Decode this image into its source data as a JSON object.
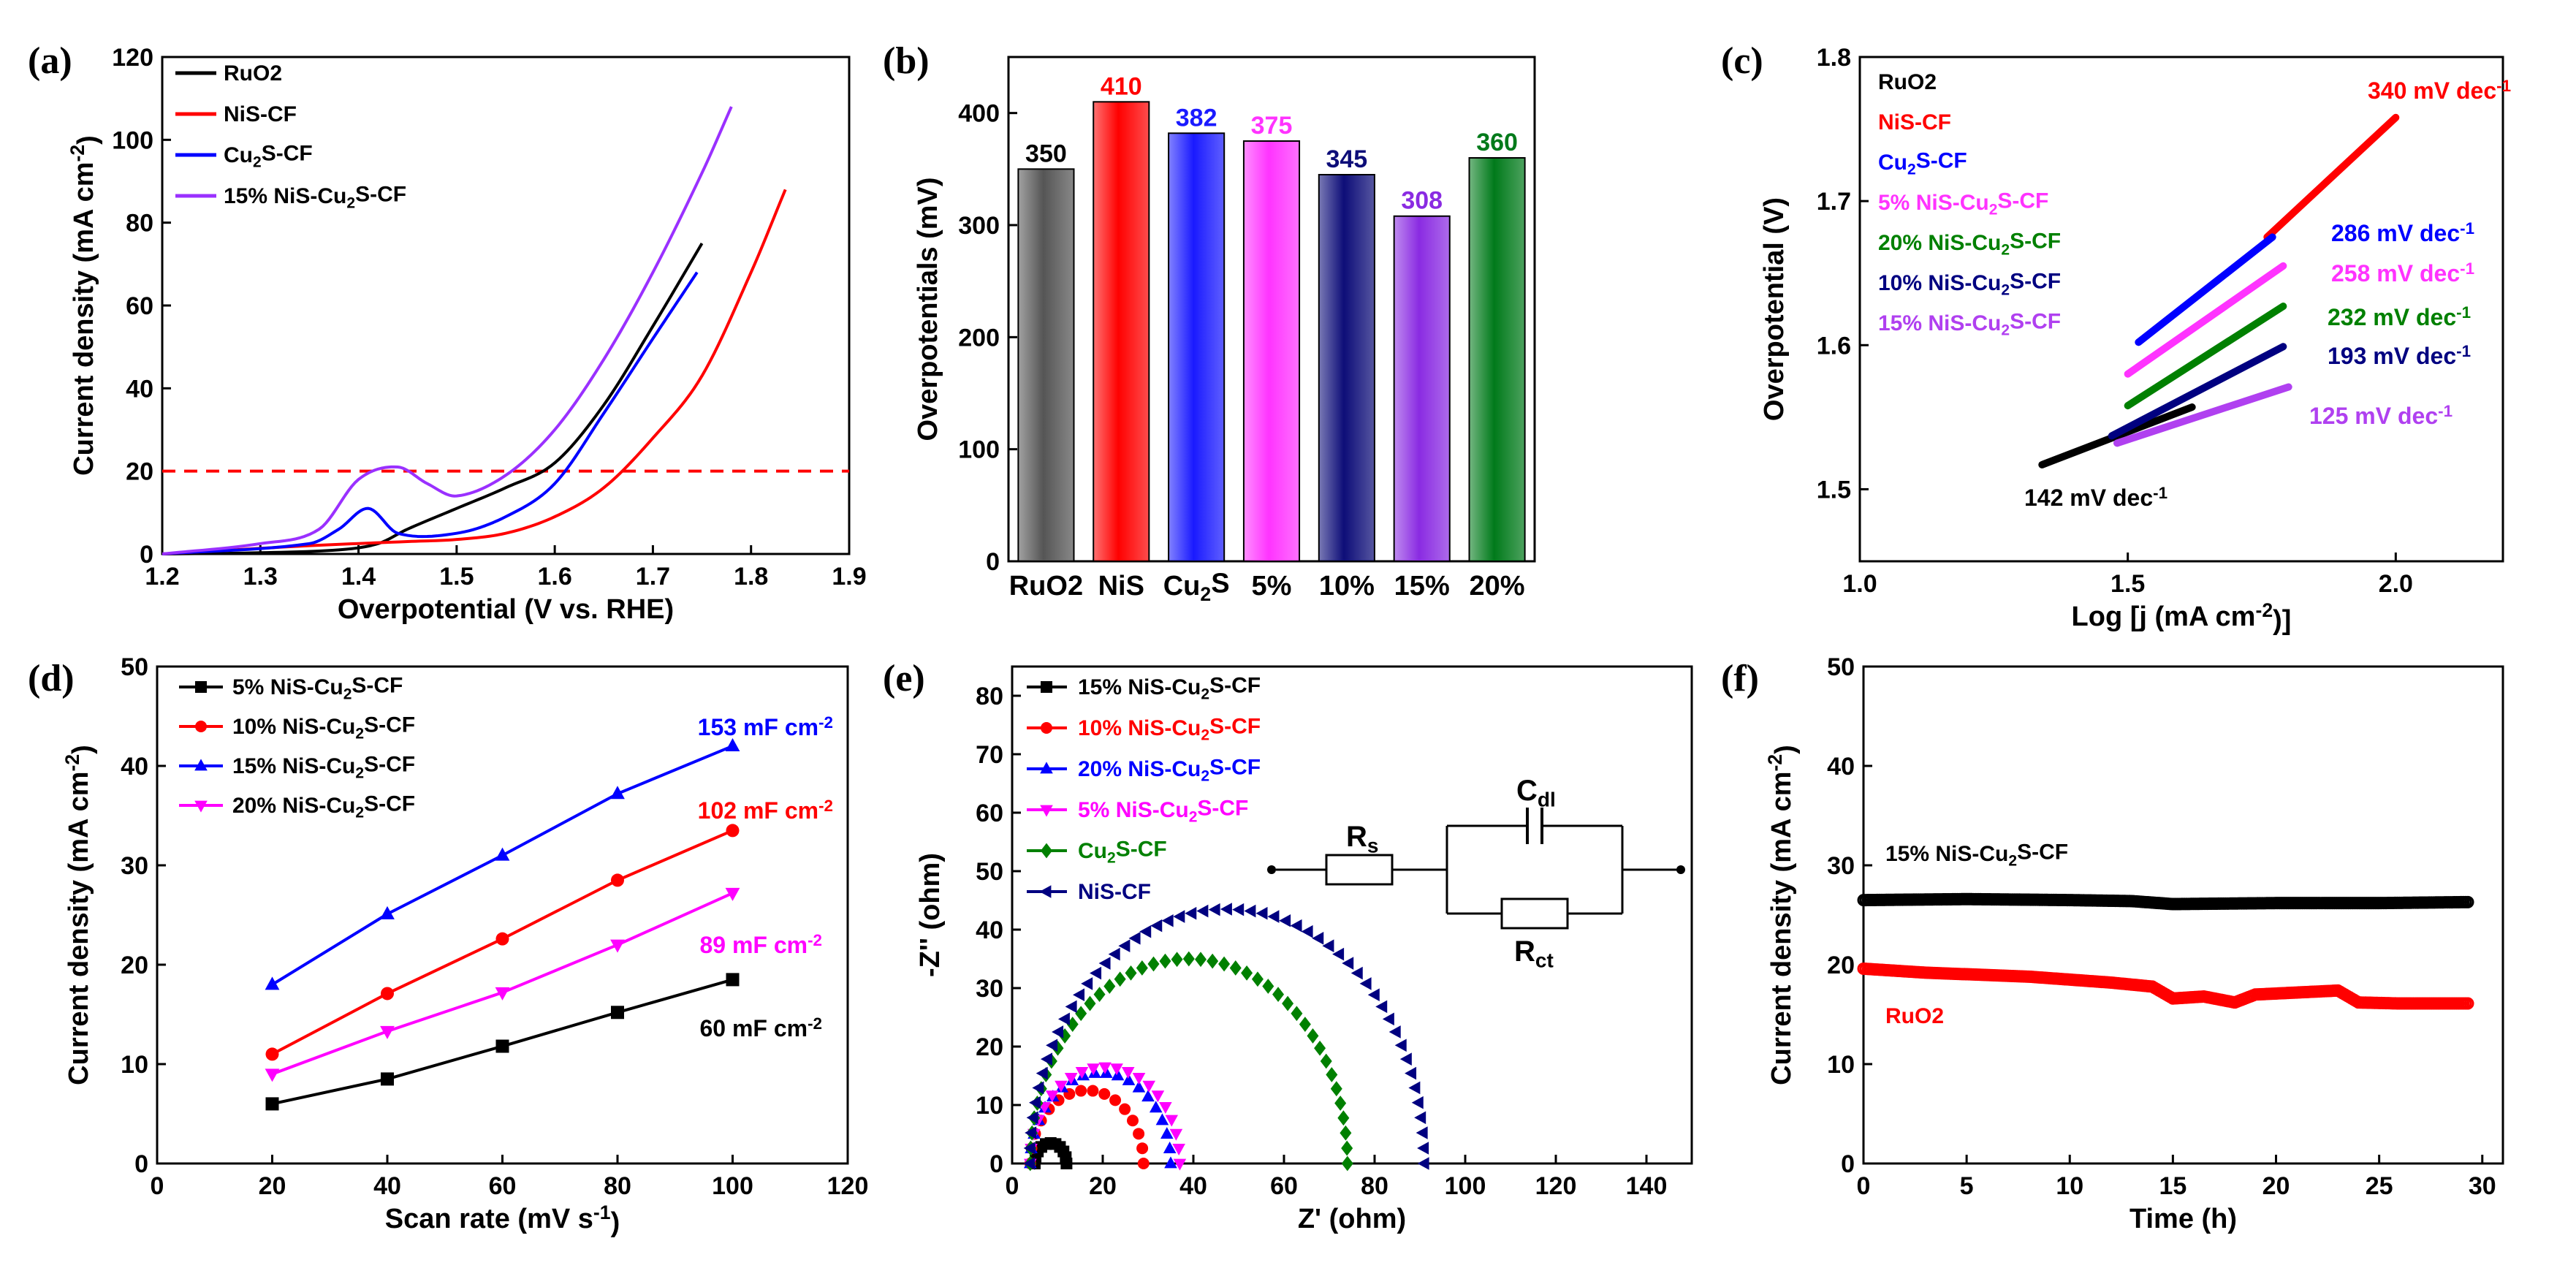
{
  "chart_data": [
    {
      "panel": "(a)",
      "type": "line",
      "xlabel": "Overpotential (V vs. RHE)",
      "ylabel": "Current density (mA cm-2)",
      "xlim": [
        1.2,
        1.9
      ],
      "ylim": [
        0,
        120
      ],
      "xticks": [
        "1.2",
        "1.3",
        "1.4",
        "1.5",
        "1.6",
        "1.7",
        "1.8",
        "1.9"
      ],
      "yticks": [
        "0",
        "20",
        "40",
        "60",
        "80",
        "100",
        "120"
      ],
      "hline": 20,
      "series": [
        {
          "name": "RuO2",
          "color": "#000000",
          "x": [
            1.2,
            1.3,
            1.38,
            1.42,
            1.45,
            1.5,
            1.55,
            1.6,
            1.65,
            1.7,
            1.75
          ],
          "y": [
            0,
            0.3,
            1,
            2.5,
            6,
            11,
            16,
            22,
            36,
            55,
            75
          ]
        },
        {
          "name": "NiS-CF",
          "color": "#ff0000",
          "x": [
            1.2,
            1.35,
            1.45,
            1.5,
            1.55,
            1.6,
            1.65,
            1.7,
            1.75,
            1.8,
            1.835
          ],
          "y": [
            0,
            2,
            3,
            3.5,
            5,
            9,
            16,
            28,
            43,
            68,
            88
          ]
        },
        {
          "name": "Cu2S-CF",
          "color": "#0000ff",
          "x": [
            1.2,
            1.35,
            1.38,
            1.41,
            1.44,
            1.5,
            1.55,
            1.6,
            1.65,
            1.7,
            1.745
          ],
          "y": [
            0,
            2.5,
            6,
            11,
            5,
            5,
            9,
            17,
            34,
            52,
            68
          ]
        },
        {
          "name": "15% NiS-Cu2S-CF",
          "color": "#9a30ff",
          "x": [
            1.2,
            1.3,
            1.36,
            1.4,
            1.44,
            1.47,
            1.5,
            1.55,
            1.6,
            1.65,
            1.7,
            1.75,
            1.78
          ],
          "y": [
            0,
            2.5,
            6,
            18,
            21,
            17,
            14,
            19,
            30,
            47,
            68,
            92,
            108
          ]
        }
      ]
    },
    {
      "panel": "(b)",
      "type": "bar",
      "ylabel": "Overpotentials (mV)",
      "ylim": [
        0,
        450
      ],
      "yticks": [
        "0",
        "100",
        "200",
        "300",
        "400"
      ],
      "categories": [
        "RuO2",
        "NiS",
        "Cu2S",
        "5%",
        "10%",
        "15%",
        "20%"
      ],
      "values": [
        350,
        410,
        382,
        375,
        345,
        308,
        360
      ],
      "value_labels": [
        "350",
        "410",
        "382",
        "375",
        "345",
        "308",
        "360"
      ],
      "colors": [
        "#555555",
        "#ff0000",
        "#1a1aff",
        "#ff33ff",
        "#0d0d78",
        "#8a2be2",
        "#007a1a"
      ]
    },
    {
      "panel": "(c)",
      "type": "line",
      "xlabel": "Log [j (mA cm-2)]",
      "ylabel": "Overpotential (V)",
      "xlim": [
        1.0,
        2.2
      ],
      "ylim": [
        1.45,
        1.8
      ],
      "xticks": [
        "1.0",
        "1.5",
        "2.0"
      ],
      "yticks": [
        "1.5",
        "1.6",
        "1.7",
        "1.8"
      ],
      "series": [
        {
          "name": "RuO2",
          "color": "#000000",
          "x": [
            1.34,
            1.62
          ],
          "y": [
            1.517,
            1.557
          ],
          "slope": "142 mV dec-1"
        },
        {
          "name": "NiS-CF",
          "color": "#ff0000",
          "x": [
            1.76,
            2.0
          ],
          "y": [
            1.675,
            1.758
          ],
          "slope": "340 mV dec-1"
        },
        {
          "name": "Cu2S-CF",
          "color": "#0000ff",
          "x": [
            1.52,
            1.77
          ],
          "y": [
            1.602,
            1.675
          ],
          "slope": "286 mV dec-1"
        },
        {
          "name": "5% NiS-Cu2S-CF",
          "color": "#ff33ff",
          "x": [
            1.5,
            1.79
          ],
          "y": [
            1.58,
            1.655
          ],
          "slope": "258 mV dec-1"
        },
        {
          "name": "20% NiS-Cu2S-CF",
          "color": "#008000",
          "x": [
            1.5,
            1.79
          ],
          "y": [
            1.558,
            1.627
          ],
          "slope": "232 mV dec-1"
        },
        {
          "name": "10% NiS-Cu2S-CF",
          "color": "#000080",
          "x": [
            1.47,
            1.79
          ],
          "y": [
            1.537,
            1.599
          ],
          "slope": "193 mV dec-1"
        },
        {
          "name": "15% NiS-Cu2S-CF",
          "color": "#b040f0",
          "x": [
            1.48,
            1.8
          ],
          "y": [
            1.532,
            1.571
          ],
          "slope": "125 mV dec-1"
        }
      ]
    },
    {
      "panel": "(d)",
      "type": "line",
      "xlabel": "Scan rate (mV s-1)",
      "ylabel": "Current density (mA cm-2)",
      "xlim": [
        0,
        120
      ],
      "ylim": [
        0,
        50
      ],
      "xticks": [
        "0",
        "20",
        "40",
        "60",
        "80",
        "100",
        "120"
      ],
      "yticks": [
        "0",
        "10",
        "20",
        "30",
        "40",
        "50"
      ],
      "x": [
        20,
        40,
        60,
        80,
        100
      ],
      "series": [
        {
          "name": "5% NiS-Cu2S-CF",
          "color": "#000000",
          "marker": "square",
          "values": [
            6,
            8.5,
            11.8,
            15.2,
            18.5
          ],
          "slope": "60 mF cm-2"
        },
        {
          "name": "10% NiS-Cu2S-CF",
          "color": "#ff0000",
          "marker": "circle",
          "values": [
            11,
            17.1,
            22.6,
            28.5,
            33.5
          ],
          "slope": "102 mF cm-2"
        },
        {
          "name": "15% NiS-Cu2S-CF",
          "color": "#0000ff",
          "marker": "triangle-up",
          "values": [
            18,
            25.1,
            31,
            37.2,
            42
          ],
          "slope": "153 mF cm-2"
        },
        {
          "name": "20% NiS-Cu2S-CF",
          "color": "#ff00ff",
          "marker": "triangle-down",
          "values": [
            9,
            13.3,
            17.2,
            22,
            27.2
          ],
          "slope": "89 mF cm-2"
        }
      ]
    },
    {
      "panel": "(e)",
      "type": "scatter",
      "xlabel": "Z' (ohm)",
      "ylabel": "-Z'' (ohm)",
      "xlim": [
        0,
        150
      ],
      "ylim": [
        0,
        85
      ],
      "xticks": [
        "0",
        "20",
        "40",
        "60",
        "80",
        "100",
        "120",
        "140"
      ],
      "yticks": [
        "0",
        "10",
        "20",
        "30",
        "40",
        "50",
        "60",
        "70",
        "80"
      ],
      "series": [
        {
          "name": "15% NiS-Cu2S-CF",
          "color": "#000000",
          "marker": "square",
          "z_start": 5,
          "z_end": 12
        },
        {
          "name": "10% NiS-Cu2S-CF",
          "color": "#ff0000",
          "marker": "circle",
          "z_start": 4,
          "z_end": 29
        },
        {
          "name": "20% NiS-Cu2S-CF",
          "color": "#0000ff",
          "marker": "triangle-up",
          "z_start": 4,
          "z_end": 35
        },
        {
          "name": "5% NiS-Cu2S-CF",
          "color": "#ff00ff",
          "marker": "triangle-down",
          "z_start": 4,
          "z_end": 37
        },
        {
          "name": "Cu2S-CF",
          "color": "#008000",
          "marker": "diamond",
          "z_start": 4,
          "z_end": 74
        },
        {
          "name": "NiS-CF",
          "color": "#000080",
          "marker": "triangle-left",
          "z_start": 4,
          "z_end": 91
        }
      ],
      "circuit": {
        "rs": "R",
        "rs_sub": "s",
        "cdl": "C",
        "cdl_sub": "dl",
        "rct": "R",
        "rct_sub": "ct"
      }
    },
    {
      "panel": "(f)",
      "type": "line",
      "xlabel": "Time (h)",
      "ylabel": "Current density (mA cm-2)",
      "xlim": [
        0,
        31
      ],
      "ylim": [
        0,
        50
      ],
      "xticks": [
        "0",
        "5",
        "10",
        "15",
        "20",
        "25",
        "30"
      ],
      "yticks": [
        "0",
        "10",
        "20",
        "30",
        "40",
        "50"
      ],
      "series": [
        {
          "name": "15% NiS-Cu2S-CF",
          "color": "#000000",
          "x": [
            0,
            5,
            10,
            13,
            15,
            20,
            25,
            29.3
          ],
          "y": [
            26.5,
            26.6,
            26.5,
            26.4,
            26.1,
            26.2,
            26.2,
            26.3
          ]
        },
        {
          "name": "RuO2",
          "color": "#ff0000",
          "x": [
            0,
            3,
            8,
            12,
            14,
            15,
            16.5,
            18,
            19,
            21,
            23,
            24,
            26,
            29.3
          ],
          "y": [
            19.6,
            19.2,
            18.8,
            18.2,
            17.8,
            16.6,
            16.8,
            16.2,
            17,
            17.2,
            17.4,
            16.2,
            16.1,
            16.1
          ]
        }
      ]
    }
  ]
}
